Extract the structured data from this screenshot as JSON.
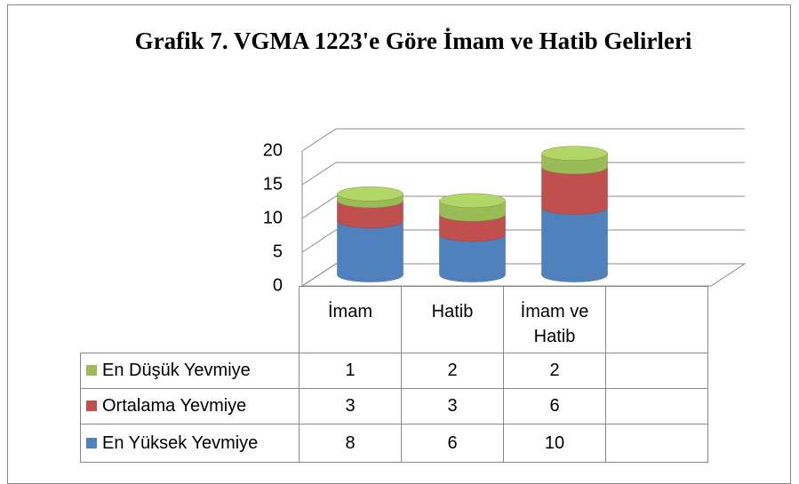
{
  "chart_data": {
    "type": "bar3d_stacked",
    "title": "Grafik 7. VGMA 1223'e Göre İmam ve Hatib Gelirleri",
    "categories": [
      "İmam",
      "Hatib",
      "İmam ve Hatib",
      null
    ],
    "series": [
      {
        "name": "En Düşük Yevmiye",
        "color": "#9bbb59",
        "values": [
          1,
          2,
          2,
          null
        ]
      },
      {
        "name": "Ortalama Yevmiye",
        "color": "#c0504d",
        "values": [
          3,
          3,
          6,
          null
        ]
      },
      {
        "name": "En Yüksek Yevmiye",
        "color": "#4f81bd",
        "values": [
          8,
          6,
          10,
          null
        ]
      }
    ],
    "ylim": [
      0,
      20
    ],
    "yticks": [
      0,
      5,
      10,
      15,
      20
    ],
    "grid": true
  }
}
